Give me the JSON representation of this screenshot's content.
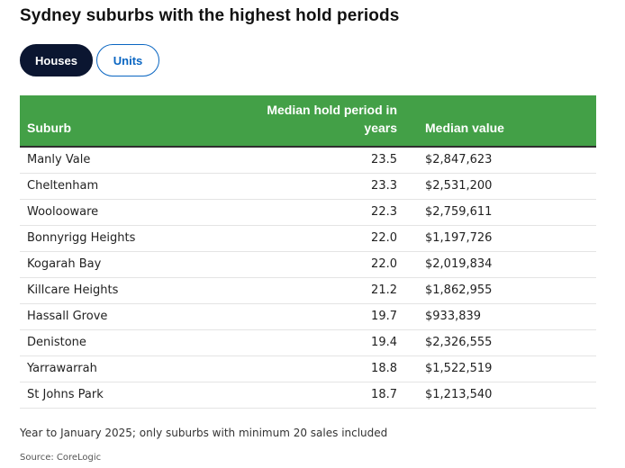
{
  "title": "Sydney suburbs with the highest hold periods",
  "tabs": [
    {
      "label": "Houses",
      "active": true
    },
    {
      "label": "Units",
      "active": false
    }
  ],
  "table": {
    "headers": {
      "suburb": "Suburb",
      "hold_line1": "Median hold period in",
      "hold_line2": "years",
      "value": "Median value"
    },
    "rows": [
      {
        "suburb": "Manly Vale",
        "hold": "23.5",
        "value": "$2,847,623"
      },
      {
        "suburb": "Cheltenham",
        "hold": "23.3",
        "value": "$2,531,200"
      },
      {
        "suburb": "Woolooware",
        "hold": "22.3",
        "value": "$2,759,611"
      },
      {
        "suburb": "Bonnyrigg Heights",
        "hold": "22.0",
        "value": "$1,197,726"
      },
      {
        "suburb": "Kogarah Bay",
        "hold": "22.0",
        "value": "$2,019,834"
      },
      {
        "suburb": "Killcare Heights",
        "hold": "21.2",
        "value": "$1,862,955"
      },
      {
        "suburb": "Hassall Grove",
        "hold": "19.7",
        "value": "$933,839"
      },
      {
        "suburb": "Denistone",
        "hold": "19.4",
        "value": "$2,326,555"
      },
      {
        "suburb": "Yarrawarrah",
        "hold": "18.8",
        "value": "$1,522,519"
      },
      {
        "suburb": "St Johns Park",
        "hold": "18.7",
        "value": "$1,213,540"
      }
    ]
  },
  "note": "Year to January 2025; only suburbs with minimum 20 sales included",
  "source": "Source: CoreLogic",
  "colors": {
    "header_green": "#43a047",
    "active_tab": "#0b1631",
    "inactive_tab_accent": "#0a66c2"
  }
}
